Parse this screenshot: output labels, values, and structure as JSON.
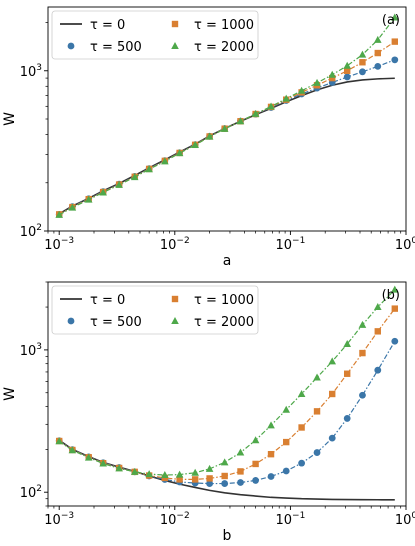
{
  "chart_data": [
    {
      "type": "line",
      "panel_label": "(a)",
      "xlabel": "a",
      "ylabel": "W",
      "xscale": "log",
      "yscale": "log",
      "xlim": [
        0.0008,
        1.0
      ],
      "ylim": [
        100,
        2500
      ],
      "x_ticks": [
        {
          "value": 0.001,
          "base": "10",
          "exp": "−3"
        },
        {
          "value": 0.01,
          "base": "10",
          "exp": "−2"
        },
        {
          "value": 0.1,
          "base": "10",
          "exp": "−1"
        },
        {
          "value": 1,
          "base": "10",
          "exp": "0"
        }
      ],
      "y_ticks": [
        {
          "value": 100,
          "base": "10",
          "exp": "2"
        },
        {
          "value": 1000,
          "base": "10",
          "exp": "3"
        }
      ],
      "legend": {
        "placement": "top-left",
        "columns": 2
      },
      "series": [
        {
          "name": "τ = 0",
          "style": "line",
          "marker": "none",
          "color": "#333333",
          "x": [
            0.001,
            0.0013,
            0.0018,
            0.0024,
            0.0033,
            0.0045,
            0.006,
            0.0082,
            0.011,
            0.015,
            0.02,
            0.027,
            0.037,
            0.05,
            0.068,
            0.092,
            0.125,
            0.17,
            0.23,
            0.31,
            0.42,
            0.57,
            0.8
          ],
          "y": [
            128,
            143,
            160,
            178,
            198,
            222,
            248,
            278,
            311,
            348,
            392,
            436,
            484,
            532,
            582,
            640,
            700,
            760,
            812,
            852,
            876,
            890,
            898
          ]
        },
        {
          "name": "τ = 500",
          "style": "dash-dot",
          "marker": "circle",
          "color": "#3b76a8",
          "x": [
            0.001,
            0.0013,
            0.0018,
            0.0024,
            0.0033,
            0.0045,
            0.006,
            0.0082,
            0.011,
            0.015,
            0.02,
            0.027,
            0.037,
            0.05,
            0.068,
            0.092,
            0.125,
            0.17,
            0.23,
            0.31,
            0.42,
            0.57,
            0.8
          ],
          "y": [
            127,
            142,
            159,
            176,
            196,
            219,
            245,
            275,
            308,
            346,
            390,
            436,
            485,
            536,
            590,
            652,
            716,
            780,
            845,
            915,
            985,
            1065,
            1170
          ]
        },
        {
          "name": "τ = 1000",
          "style": "dash-dot",
          "marker": "square",
          "color": "#d97f31",
          "x": [
            0.001,
            0.0013,
            0.0018,
            0.0024,
            0.0033,
            0.0045,
            0.006,
            0.0082,
            0.011,
            0.015,
            0.02,
            0.027,
            0.037,
            0.05,
            0.068,
            0.092,
            0.125,
            0.17,
            0.23,
            0.31,
            0.42,
            0.57,
            0.8
          ],
          "y": [
            127,
            141,
            158,
            175,
            195,
            218,
            244,
            274,
            307,
            345,
            389,
            435,
            484,
            537,
            595,
            660,
            733,
            812,
            900,
            1000,
            1130,
            1290,
            1520
          ]
        },
        {
          "name": "τ = 2000",
          "style": "dash-dot",
          "marker": "triangle",
          "color": "#4ea84a",
          "x": [
            0.001,
            0.0013,
            0.0018,
            0.0024,
            0.0033,
            0.0045,
            0.006,
            0.0082,
            0.011,
            0.015,
            0.02,
            0.027,
            0.037,
            0.05,
            0.068,
            0.092,
            0.125,
            0.17,
            0.23,
            0.31,
            0.42,
            0.57,
            0.8
          ],
          "y": [
            126,
            140,
            157,
            174,
            194,
            217,
            243,
            272,
            306,
            344,
            388,
            434,
            484,
            538,
            598,
            670,
            750,
            840,
            945,
            1075,
            1260,
            1560,
            2150
          ]
        }
      ]
    },
    {
      "type": "line",
      "panel_label": "(b)",
      "xlabel": "b",
      "ylabel": "W",
      "xscale": "log",
      "yscale": "log",
      "xlim": [
        0.0008,
        1.0
      ],
      "ylim": [
        80,
        3000
      ],
      "x_ticks": [
        {
          "value": 0.001,
          "base": "10",
          "exp": "−3"
        },
        {
          "value": 0.01,
          "base": "10",
          "exp": "−2"
        },
        {
          "value": 0.1,
          "base": "10",
          "exp": "−1"
        },
        {
          "value": 1,
          "base": "10",
          "exp": "0"
        }
      ],
      "y_ticks": [
        {
          "value": 100,
          "base": "10",
          "exp": "2"
        },
        {
          "value": 1000,
          "base": "10",
          "exp": "3"
        }
      ],
      "legend": {
        "placement": "top-left",
        "columns": 2
      },
      "series": [
        {
          "name": "τ = 0",
          "style": "line",
          "marker": "none",
          "color": "#333333",
          "x": [
            0.001,
            0.0013,
            0.0018,
            0.0024,
            0.0033,
            0.0045,
            0.006,
            0.0082,
            0.011,
            0.015,
            0.02,
            0.027,
            0.037,
            0.05,
            0.068,
            0.092,
            0.125,
            0.17,
            0.23,
            0.31,
            0.42,
            0.57,
            0.8
          ],
          "y": [
            232,
            200,
            178,
            162,
            150,
            140,
            130,
            121,
            114,
            108,
            103,
            99,
            96,
            94,
            92,
            91,
            90,
            89.5,
            89,
            88.8,
            88.6,
            88.5,
            88.4
          ]
        },
        {
          "name": "τ = 500",
          "style": "dash-dot",
          "marker": "circle",
          "color": "#3b76a8",
          "x": [
            0.001,
            0.0013,
            0.0018,
            0.0024,
            0.0033,
            0.0045,
            0.006,
            0.0082,
            0.011,
            0.015,
            0.02,
            0.027,
            0.037,
            0.05,
            0.068,
            0.092,
            0.125,
            0.17,
            0.23,
            0.31,
            0.42,
            0.57,
            0.8
          ],
          "y": [
            230,
            199,
            177,
            161,
            149,
            139,
            130,
            123,
            118,
            116,
            115,
            115,
            117,
            121,
            129,
            141,
            160,
            190,
            240,
            330,
            480,
            720,
            1150
          ]
        },
        {
          "name": "τ = 1000",
          "style": "dash-dot",
          "marker": "square",
          "color": "#d97f31",
          "x": [
            0.001,
            0.0013,
            0.0018,
            0.0024,
            0.0033,
            0.0045,
            0.006,
            0.0082,
            0.011,
            0.015,
            0.02,
            0.027,
            0.037,
            0.05,
            0.068,
            0.092,
            0.125,
            0.17,
            0.23,
            0.31,
            0.42,
            0.57,
            0.8
          ],
          "y": [
            229,
            198,
            176,
            160,
            148,
            139,
            131,
            126,
            123,
            123,
            125,
            130,
            140,
            158,
            185,
            225,
            285,
            370,
            490,
            680,
            950,
            1350,
            1950
          ]
        },
        {
          "name": "τ = 2000",
          "style": "dash-dot",
          "marker": "triangle",
          "color": "#4ea84a",
          "x": [
            0.001,
            0.0013,
            0.0018,
            0.0024,
            0.0033,
            0.0045,
            0.006,
            0.0082,
            0.011,
            0.015,
            0.02,
            0.027,
            0.037,
            0.05,
            0.068,
            0.092,
            0.125,
            0.17,
            0.23,
            0.31,
            0.42,
            0.57,
            0.8
          ],
          "y": [
            228,
            197,
            175,
            159,
            147,
            139,
            134,
            132,
            133,
            137,
            146,
            162,
            190,
            232,
            295,
            380,
            490,
            640,
            830,
            1100,
            1500,
            2000,
            2650
          ]
        }
      ]
    }
  ]
}
